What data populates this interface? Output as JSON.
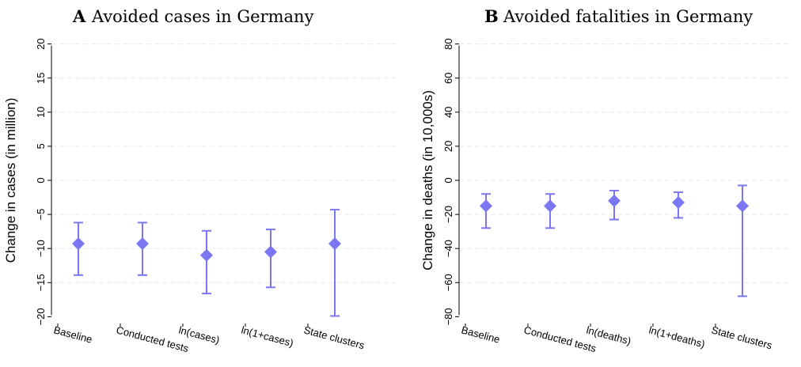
{
  "chart_data": [
    {
      "type": "scatter",
      "panel": "A",
      "title": "Avoided cases in Germany",
      "xlabel": "",
      "ylabel": "Change in cases (in million)",
      "categories": [
        "Baseline",
        "Conducted tests",
        "ln(cases)",
        "ln(1+cases)",
        "State clusters"
      ],
      "values": [
        -9.3,
        -9.3,
        -11.0,
        -10.5,
        -9.3
      ],
      "ci_low": [
        -13.9,
        -13.9,
        -16.6,
        -15.7,
        -19.9
      ],
      "ci_high": [
        -6.2,
        -6.2,
        -7.4,
        -7.2,
        -4.3
      ],
      "yticks": [
        -20,
        -15,
        -10,
        -5,
        0,
        5,
        10,
        15,
        20
      ],
      "ytick_labels": [
        "−20",
        "−15",
        "−10",
        "−5",
        "0",
        "5",
        "10",
        "15",
        "20"
      ],
      "ylim": [
        -21,
        21
      ],
      "grid": true,
      "color": "#7B76F2"
    },
    {
      "type": "scatter",
      "panel": "B",
      "title": "Avoided fatalities in Germany",
      "xlabel": "",
      "ylabel": "Change in deaths (in 10,000s)",
      "categories": [
        "Baseline",
        "Conducted tests",
        "ln(deaths)",
        "ln(1+deaths)",
        "State clusters"
      ],
      "values": [
        -15,
        -15,
        -12,
        -13,
        -15
      ],
      "ci_low": [
        -28,
        -28,
        -23,
        -22,
        -68
      ],
      "ci_high": [
        -8,
        -8,
        -6,
        -7,
        -3
      ],
      "yticks": [
        -80,
        -60,
        -40,
        -20,
        0,
        20,
        40,
        60,
        80
      ],
      "ytick_labels": [
        "−80",
        "−60",
        "−40",
        "−20",
        "0",
        "20",
        "40",
        "60",
        "80"
      ],
      "ylim": [
        -84,
        84
      ],
      "grid": true,
      "color": "#7B76F2"
    }
  ]
}
